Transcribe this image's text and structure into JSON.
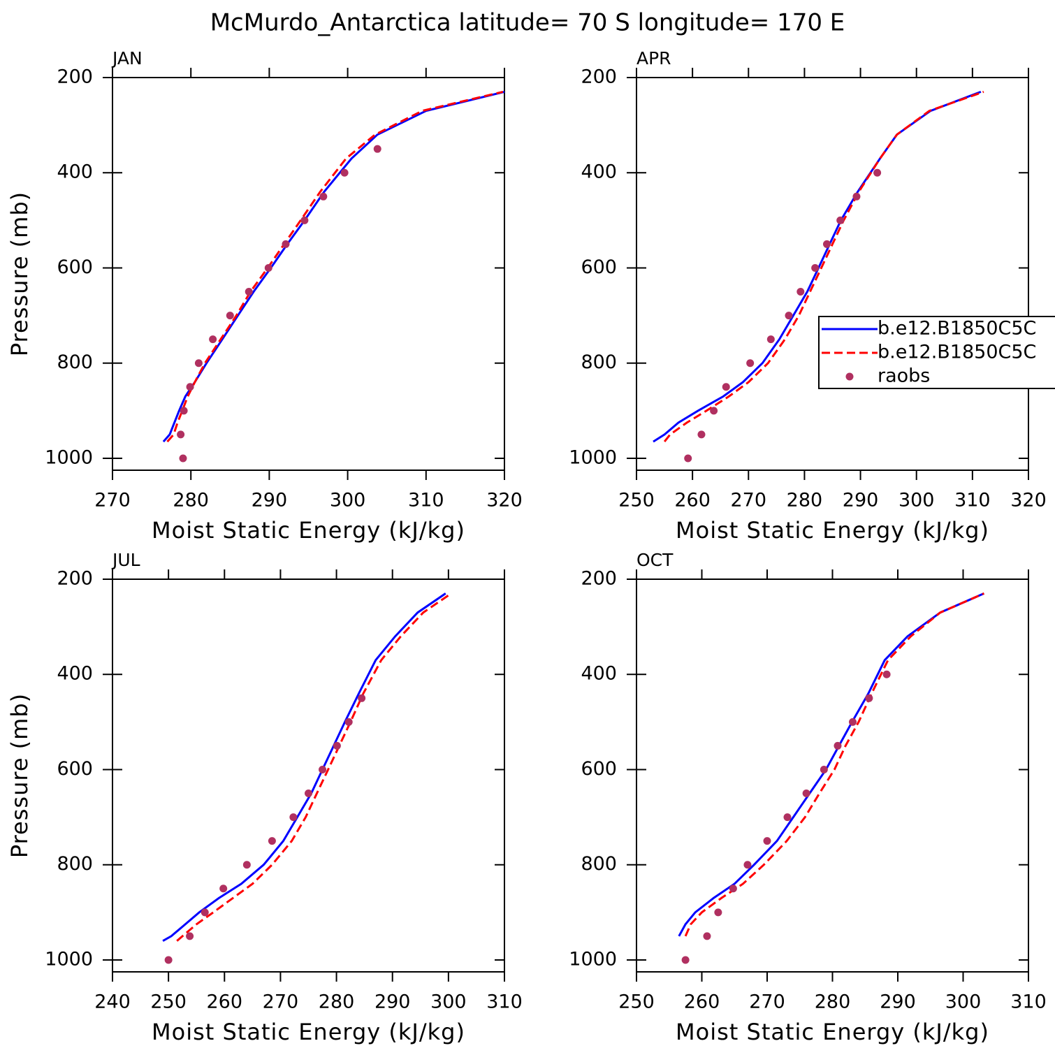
{
  "title": "McMurdo_Antarctica  latitude= 70 S longitude= 170 E",
  "chart_data": [
    {
      "type": "line",
      "title": "JAN",
      "xlabel": "Moist Static Energy (kJ/kg)",
      "ylabel": "Pressure (mb)",
      "xlim": [
        270,
        320
      ],
      "xticks": [
        270,
        280,
        290,
        300,
        310,
        320
      ],
      "ylim": [
        1025,
        200
      ],
      "yticks": [
        200,
        400,
        600,
        800,
        1000
      ],
      "series": [
        {
          "color": "#0000ff",
          "linestyle": "solid",
          "y": [
            965,
            950,
            925,
            900,
            870,
            840,
            800,
            750,
            700,
            650,
            600,
            550,
            500,
            440,
            370,
            320,
            270,
            230
          ],
          "x": [
            276.5,
            277.3,
            277.9,
            278.5,
            279.3,
            280.5,
            282.0,
            284.0,
            286.0,
            288.0,
            290.2,
            292.3,
            294.5,
            297.0,
            300.5,
            303.8,
            310.0,
            320.0
          ]
        },
        {
          "color": "#ff0000",
          "linestyle": "dashed",
          "y": [
            965,
            950,
            925,
            900,
            870,
            840,
            800,
            750,
            700,
            650,
            600,
            550,
            500,
            440,
            370,
            320,
            270,
            230
          ],
          "x": [
            277.0,
            277.8,
            278.3,
            278.9,
            279.6,
            280.5,
            281.8,
            283.8,
            285.8,
            287.6,
            289.8,
            291.9,
            294.0,
            296.5,
            299.8,
            303.5,
            309.5,
            319.8
          ]
        },
        {
          "color": "#b03060",
          "marker": "dot",
          "y": [
            1000,
            950,
            900,
            850,
            800,
            750,
            700,
            650,
            600,
            550,
            500,
            450,
            400,
            350
          ],
          "x": [
            279.0,
            278.7,
            279.1,
            279.9,
            281.0,
            282.8,
            285.0,
            287.4,
            289.9,
            292.1,
            294.5,
            296.9,
            299.6,
            303.8
          ]
        }
      ]
    },
    {
      "type": "line",
      "title": "APR",
      "xlabel": "Moist Static Energy (kJ/kg)",
      "legend": true,
      "xlim": [
        250,
        320
      ],
      "xticks": [
        250,
        260,
        270,
        280,
        290,
        300,
        310,
        320
      ],
      "ylim": [
        1025,
        200
      ],
      "yticks": [
        200,
        400,
        600,
        800,
        1000
      ],
      "series": [
        {
          "name": "b.e12.B1850C5C",
          "color": "#0000ff",
          "linestyle": "solid",
          "y": [
            965,
            950,
            925,
            900,
            870,
            840,
            800,
            750,
            700,
            650,
            600,
            550,
            500,
            440,
            370,
            320,
            270,
            230
          ],
          "x": [
            253.0,
            255.0,
            257.5,
            261.0,
            265.5,
            269.0,
            272.5,
            275.5,
            278.0,
            280.5,
            282.5,
            284.5,
            286.5,
            289.5,
            293.5,
            296.5,
            302.5,
            311.5
          ]
        },
        {
          "name": "b.e12.B1850C5C",
          "color": "#ff0000",
          "linestyle": "dashed",
          "y": [
            965,
            950,
            925,
            900,
            870,
            840,
            800,
            750,
            700,
            650,
            600,
            550,
            500,
            440,
            370,
            320,
            270,
            230
          ],
          "x": [
            255.0,
            256.0,
            259.0,
            262.5,
            266.5,
            270.0,
            273.5,
            276.5,
            279.0,
            281.0,
            283.0,
            285.0,
            287.0,
            289.7,
            293.5,
            296.5,
            302.3,
            312.0
          ]
        },
        {
          "name": "raobs",
          "color": "#b03060",
          "marker": "dot",
          "y": [
            1000,
            950,
            900,
            850,
            800,
            750,
            700,
            650,
            600,
            550,
            500,
            450,
            400
          ],
          "x": [
            259.2,
            261.6,
            263.8,
            266.0,
            270.3,
            274.0,
            277.2,
            279.3,
            281.9,
            284.0,
            286.4,
            289.3,
            293.0
          ]
        }
      ]
    },
    {
      "type": "line",
      "title": "JUL",
      "xlabel": "Moist Static Energy (kJ/kg)",
      "ylabel": "Pressure (mb)",
      "xlim": [
        240,
        310
      ],
      "xticks": [
        240,
        250,
        260,
        270,
        280,
        290,
        300,
        310
      ],
      "ylim": [
        1025,
        200
      ],
      "yticks": [
        200,
        400,
        600,
        800,
        1000
      ],
      "series": [
        {
          "color": "#0000ff",
          "linestyle": "solid",
          "y": [
            960,
            950,
            925,
            900,
            870,
            840,
            800,
            750,
            700,
            650,
            600,
            550,
            500,
            440,
            370,
            320,
            270,
            230
          ],
          "x": [
            249.0,
            250.5,
            253.0,
            255.5,
            259.0,
            263.0,
            267.0,
            270.5,
            273.0,
            275.5,
            277.5,
            279.5,
            281.5,
            284.0,
            287.0,
            290.5,
            294.5,
            299.5
          ]
        },
        {
          "color": "#ff0000",
          "linestyle": "dashed",
          "y": [
            960,
            950,
            925,
            900,
            870,
            840,
            800,
            750,
            700,
            650,
            600,
            550,
            500,
            440,
            370,
            320,
            270,
            230
          ],
          "x": [
            251.5,
            252.5,
            255.0,
            258.0,
            261.5,
            265.0,
            268.5,
            272.0,
            274.5,
            276.5,
            278.5,
            280.5,
            282.5,
            284.8,
            288.0,
            291.5,
            295.5,
            300.5
          ]
        },
        {
          "color": "#b03060",
          "marker": "dot",
          "y": [
            1000,
            950,
            900,
            850,
            800,
            750,
            700,
            650,
            600,
            550,
            500,
            450
          ],
          "x": [
            250.0,
            253.8,
            256.5,
            259.8,
            264.0,
            268.5,
            272.3,
            275.0,
            277.5,
            280.1,
            282.2,
            284.5
          ]
        }
      ]
    },
    {
      "type": "line",
      "title": "OCT",
      "xlabel": "Moist Static Energy (kJ/kg)",
      "xlim": [
        250,
        310
      ],
      "xticks": [
        250,
        260,
        270,
        280,
        290,
        300,
        310
      ],
      "ylim": [
        1025,
        200
      ],
      "yticks": [
        200,
        400,
        600,
        800,
        1000
      ],
      "series": [
        {
          "color": "#0000ff",
          "linestyle": "solid",
          "y": [
            950,
            925,
            900,
            870,
            840,
            800,
            750,
            700,
            650,
            600,
            550,
            500,
            440,
            370,
            320,
            270,
            230
          ],
          "x": [
            256.5,
            257.5,
            259.0,
            261.8,
            265.0,
            268.0,
            271.5,
            274.0,
            276.5,
            279.0,
            281.0,
            283.0,
            285.5,
            288.0,
            291.5,
            296.5,
            303.2
          ]
        },
        {
          "color": "#ff0000",
          "linestyle": "dashed",
          "y": [
            950,
            925,
            900,
            870,
            840,
            800,
            750,
            700,
            650,
            600,
            550,
            500,
            440,
            370,
            320,
            270,
            230
          ],
          "x": [
            257.5,
            258.3,
            260.0,
            263.0,
            266.3,
            269.5,
            273.0,
            275.8,
            278.0,
            280.3,
            282.0,
            284.0,
            286.0,
            288.5,
            292.0,
            296.5,
            303.2
          ]
        },
        {
          "color": "#b03060",
          "marker": "dot",
          "y": [
            1000,
            950,
            900,
            850,
            800,
            750,
            700,
            650,
            600,
            550,
            500,
            450,
            400
          ],
          "x": [
            257.5,
            260.8,
            262.5,
            264.8,
            267.0,
            270.0,
            273.1,
            276.0,
            278.7,
            280.8,
            283.1,
            285.6,
            288.3
          ]
        }
      ]
    }
  ]
}
